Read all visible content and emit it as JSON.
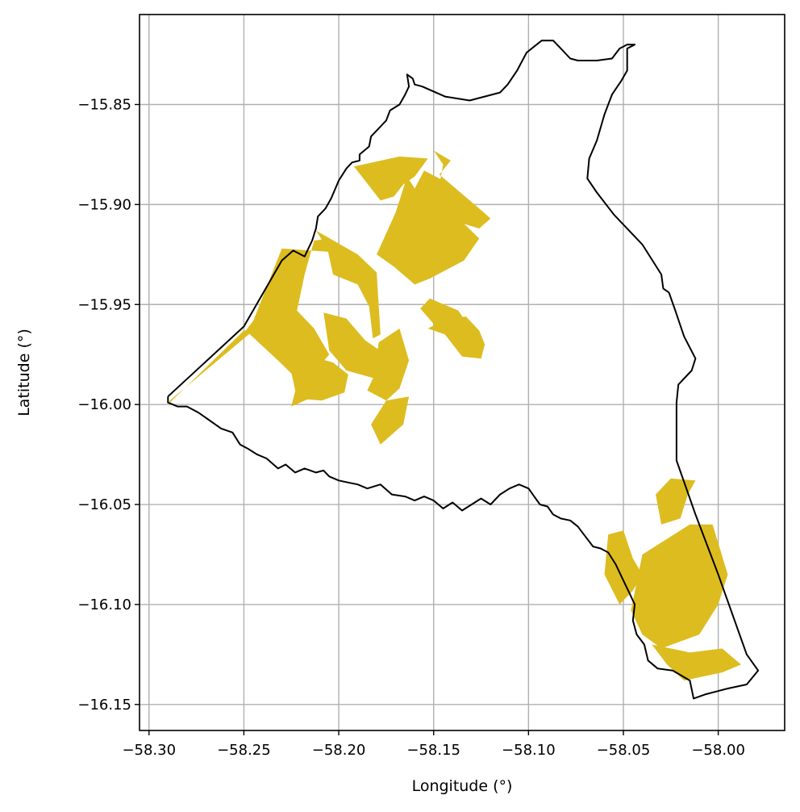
{
  "chart_data": {
    "type": "map",
    "xlabel": "Longitude (°)",
    "ylabel": "Latitude (°)",
    "xlim": [
      -58.305,
      -57.965
    ],
    "ylim": [
      -16.163,
      -15.805
    ],
    "xticks": [
      -58.3,
      -58.25,
      -58.2,
      -58.15,
      -58.1,
      -58.05,
      -58.0
    ],
    "xtick_labels": [
      "−58.30",
      "−58.25",
      "−58.20",
      "−58.15",
      "−58.10",
      "−58.05",
      "−58.00"
    ],
    "yticks": [
      -15.85,
      -15.9,
      -15.95,
      -16.0,
      -16.05,
      -16.1,
      -16.15
    ],
    "ytick_labels": [
      "−15.85",
      "−15.90",
      "−15.95",
      "−16.00",
      "−16.05",
      "−16.10",
      "−16.15"
    ],
    "grid": true,
    "fill_color": "#DDBC20",
    "outline_color": "#000000",
    "boundary": [
      [
        -58.29,
        -15.996
      ],
      [
        -58.25,
        -15.961
      ],
      [
        -58.23,
        -15.928
      ],
      [
        -58.224,
        -15.923
      ],
      [
        -58.218,
        -15.926
      ],
      [
        -58.214,
        -15.918
      ],
      [
        -58.212,
        -15.912
      ],
      [
        -58.211,
        -15.906
      ],
      [
        -58.207,
        -15.902
      ],
      [
        -58.204,
        -15.897
      ],
      [
        -58.2,
        -15.888
      ],
      [
        -58.196,
        -15.882
      ],
      [
        -58.193,
        -15.879
      ],
      [
        -58.189,
        -15.878
      ],
      [
        -58.189,
        -15.875
      ],
      [
        -58.184,
        -15.871
      ],
      [
        -58.183,
        -15.866
      ],
      [
        -58.175,
        -15.858
      ],
      [
        -58.173,
        -15.853
      ],
      [
        -58.168,
        -15.85
      ],
      [
        -58.165,
        -15.845
      ],
      [
        -58.163,
        -15.841
      ],
      [
        -58.164,
        -15.835
      ],
      [
        -58.161,
        -15.837
      ],
      [
        -58.16,
        -15.84
      ],
      [
        -58.156,
        -15.841
      ],
      [
        -58.144,
        -15.846
      ],
      [
        -58.131,
        -15.848
      ],
      [
        -58.115,
        -15.844
      ],
      [
        -58.111,
        -15.84
      ],
      [
        -58.106,
        -15.833
      ],
      [
        -58.101,
        -15.824
      ],
      [
        -58.093,
        -15.818
      ],
      [
        -58.087,
        -15.818
      ],
      [
        -58.083,
        -15.822
      ],
      [
        -58.078,
        -15.827
      ],
      [
        -58.074,
        -15.828
      ],
      [
        -58.064,
        -15.828
      ],
      [
        -58.056,
        -15.827
      ],
      [
        -58.052,
        -15.822
      ],
      [
        -58.048,
        -15.82
      ],
      [
        -58.044,
        -15.82
      ],
      [
        -58.048,
        -15.822
      ],
      [
        -58.048,
        -15.828
      ],
      [
        -58.048,
        -15.833
      ],
      [
        -58.051,
        -15.838
      ],
      [
        -58.056,
        -15.845
      ],
      [
        -58.06,
        -15.855
      ],
      [
        -58.064,
        -15.868
      ],
      [
        -58.068,
        -15.877
      ],
      [
        -58.069,
        -15.887
      ],
      [
        -58.064,
        -15.894
      ],
      [
        -58.055,
        -15.905
      ],
      [
        -58.04,
        -15.92
      ],
      [
        -58.03,
        -15.935
      ],
      [
        -58.029,
        -15.942
      ],
      [
        -58.026,
        -15.944
      ],
      [
        -58.023,
        -15.952
      ],
      [
        -58.018,
        -15.966
      ],
      [
        -58.012,
        -15.977
      ],
      [
        -58.014,
        -15.983
      ],
      [
        -58.021,
        -15.99
      ],
      [
        -58.022,
        -15.999
      ],
      [
        -58.022,
        -16.028
      ],
      [
        -58.012,
        -16.055
      ],
      [
        -58,
        -16.085
      ],
      [
        -57.985,
        -16.125
      ],
      [
        -57.979,
        -16.133
      ],
      [
        -57.985,
        -16.14
      ],
      [
        -57.995,
        -16.142
      ],
      [
        -58.007,
        -16.145
      ],
      [
        -58.013,
        -16.147
      ],
      [
        -58.015,
        -16.138
      ],
      [
        -58.024,
        -16.133
      ],
      [
        -58.032,
        -16.132
      ],
      [
        -58.037,
        -16.128
      ],
      [
        -58.039,
        -16.12
      ],
      [
        -58.043,
        -16.115
      ],
      [
        -58.045,
        -16.108
      ],
      [
        -58.044,
        -16.1
      ],
      [
        -58.047,
        -16.094
      ],
      [
        -58.05,
        -16.088
      ],
      [
        -58.054,
        -16.08
      ],
      [
        -58.058,
        -16.074
      ],
      [
        -58.062,
        -16.072
      ],
      [
        -58.066,
        -16.071
      ],
      [
        -58.07,
        -16.066
      ],
      [
        -58.074,
        -16.061
      ],
      [
        -58.078,
        -16.058
      ],
      [
        -58.083,
        -16.057
      ],
      [
        -58.087,
        -16.055
      ],
      [
        -58.09,
        -16.051
      ],
      [
        -58.094,
        -16.05
      ],
      [
        -58.097,
        -16.046
      ],
      [
        -58.1,
        -16.042
      ],
      [
        -58.105,
        -16.04
      ],
      [
        -58.11,
        -16.042
      ],
      [
        -58.115,
        -16.045
      ],
      [
        -58.12,
        -16.05
      ],
      [
        -58.125,
        -16.047
      ],
      [
        -58.13,
        -16.05
      ],
      [
        -58.135,
        -16.053
      ],
      [
        -58.14,
        -16.049
      ],
      [
        -58.145,
        -16.052
      ],
      [
        -58.15,
        -16.048
      ],
      [
        -58.155,
        -16.046
      ],
      [
        -58.16,
        -16.048
      ],
      [
        -58.165,
        -16.046
      ],
      [
        -58.172,
        -16.045
      ],
      [
        -58.178,
        -16.04
      ],
      [
        -58.185,
        -16.042
      ],
      [
        -58.19,
        -16.04
      ],
      [
        -58.195,
        -16.039
      ],
      [
        -58.2,
        -16.038
      ],
      [
        -58.205,
        -16.036
      ],
      [
        -58.208,
        -16.033
      ],
      [
        -58.212,
        -16.034
      ],
      [
        -58.218,
        -16.032
      ],
      [
        -58.223,
        -16.034
      ],
      [
        -58.228,
        -16.03
      ],
      [
        -58.232,
        -16.032
      ],
      [
        -58.238,
        -16.027
      ],
      [
        -58.243,
        -16.025
      ],
      [
        -58.248,
        -16.022
      ],
      [
        -58.252,
        -16.02
      ],
      [
        -58.256,
        -16.014
      ],
      [
        -58.262,
        -16.012
      ],
      [
        -58.265,
        -16.01
      ],
      [
        -58.268,
        -16.008
      ],
      [
        -58.274,
        -16.004
      ],
      [
        -58.28,
        -16.001
      ],
      [
        -58.285,
        -16.001
      ],
      [
        -58.29,
        -15.999
      ],
      [
        -58.29,
        -15.996
      ]
    ],
    "parcels": [
      [
        [
          -58.29,
          -16.0
        ],
        [
          -58.25,
          -15.963
        ],
        [
          -58.245,
          -15.963
        ],
        [
          -58.289,
          -15.998
        ]
      ],
      [
        [
          -58.192,
          -15.881
        ],
        [
          -58.168,
          -15.876
        ],
        [
          -58.153,
          -15.877
        ],
        [
          -58.16,
          -15.886
        ],
        [
          -58.166,
          -15.89
        ],
        [
          -58.171,
          -15.896
        ],
        [
          -58.178,
          -15.898
        ]
      ],
      [
        [
          -58.164,
          -15.886
        ],
        [
          -58.16,
          -15.892
        ],
        [
          -58.155,
          -15.883
        ],
        [
          -58.145,
          -15.888
        ],
        [
          -58.139,
          -15.905
        ],
        [
          -58.126,
          -15.917
        ],
        [
          -58.134,
          -15.928
        ],
        [
          -58.152,
          -15.937
        ],
        [
          -58.16,
          -15.94
        ],
        [
          -58.171,
          -15.931
        ],
        [
          -58.18,
          -15.925
        ],
        [
          -58.17,
          -15.904
        ]
      ],
      [
        [
          -58.15,
          -15.873
        ],
        [
          -58.141,
          -15.878
        ],
        [
          -58.147,
          -15.885
        ],
        [
          -58.126,
          -15.902
        ],
        [
          -58.12,
          -15.907
        ],
        [
          -58.126,
          -15.912
        ],
        [
          -58.15,
          -15.905
        ],
        [
          -58.145,
          -15.88
        ]
      ],
      [
        [
          -58.23,
          -15.922
        ],
        [
          -58.245,
          -15.958
        ],
        [
          -58.249,
          -15.963
        ],
        [
          -58.232,
          -15.978
        ],
        [
          -58.219,
          -15.99
        ],
        [
          -58.205,
          -15.975
        ],
        [
          -58.213,
          -15.962
        ],
        [
          -58.222,
          -15.953
        ],
        [
          -58.218,
          -15.935
        ],
        [
          -58.213,
          -15.918
        ],
        [
          -58.205,
          -15.917
        ],
        [
          -58.2,
          -15.924
        ]
      ],
      [
        [
          -58.212,
          -15.913
        ],
        [
          -58.19,
          -15.925
        ],
        [
          -58.18,
          -15.934
        ],
        [
          -58.178,
          -15.965
        ],
        [
          -58.182,
          -15.967
        ],
        [
          -58.184,
          -15.951
        ],
        [
          -58.19,
          -15.94
        ],
        [
          -58.203,
          -15.935
        ],
        [
          -58.206,
          -15.922
        ]
      ],
      [
        [
          -58.208,
          -15.954
        ],
        [
          -58.196,
          -15.957
        ],
        [
          -58.186,
          -15.968
        ],
        [
          -58.172,
          -15.977
        ],
        [
          -58.181,
          -15.987
        ],
        [
          -58.196,
          -15.983
        ],
        [
          -58.205,
          -15.973
        ]
      ],
      [
        [
          -58.179,
          -15.969
        ],
        [
          -58.168,
          -15.962
        ],
        [
          -58.163,
          -15.978
        ],
        [
          -58.168,
          -15.992
        ],
        [
          -58.175,
          -15.998
        ],
        [
          -58.185,
          -15.993
        ],
        [
          -58.181,
          -15.985
        ]
      ],
      [
        [
          -58.175,
          -15.998
        ],
        [
          -58.163,
          -15.996
        ],
        [
          -58.166,
          -16.01
        ],
        [
          -58.178,
          -16.02
        ],
        [
          -58.183,
          -16.01
        ]
      ],
      [
        [
          -58.214,
          -15.976
        ],
        [
          -58.203,
          -15.979
        ],
        [
          -58.195,
          -15.985
        ],
        [
          -58.197,
          -15.994
        ],
        [
          -58.209,
          -15.998
        ],
        [
          -58.222,
          -15.997
        ],
        [
          -58.225,
          -15.984
        ]
      ],
      [
        [
          -58.211,
          -15.977
        ],
        [
          -58.221,
          -15.986
        ],
        [
          -58.225,
          -16.001
        ],
        [
          -58.213,
          -15.996
        ]
      ],
      [
        [
          -58.152,
          -15.947
        ],
        [
          -58.137,
          -15.953
        ],
        [
          -58.132,
          -15.96
        ],
        [
          -58.147,
          -15.963
        ],
        [
          -58.157,
          -15.952
        ]
      ],
      [
        [
          -58.153,
          -15.962
        ],
        [
          -58.144,
          -15.965
        ],
        [
          -58.135,
          -15.976
        ],
        [
          -58.125,
          -15.977
        ],
        [
          -58.123,
          -15.97
        ],
        [
          -58.126,
          -15.963
        ],
        [
          -58.133,
          -15.956
        ],
        [
          -58.145,
          -15.958
        ]
      ],
      [
        [
          -58.058,
          -16.065
        ],
        [
          -58.05,
          -16.063
        ],
        [
          -58.045,
          -16.077
        ],
        [
          -58.04,
          -16.085
        ],
        [
          -58.045,
          -16.093
        ],
        [
          -58.052,
          -16.1
        ],
        [
          -58.06,
          -16.085
        ]
      ],
      [
        [
          -58.033,
          -16.045
        ],
        [
          -58.025,
          -16.037
        ],
        [
          -58.012,
          -16.038
        ],
        [
          -58.016,
          -16.045
        ],
        [
          -58.02,
          -16.057
        ],
        [
          -58.03,
          -16.06
        ]
      ],
      [
        [
          -58.04,
          -16.075
        ],
        [
          -58.015,
          -16.06
        ],
        [
          -58.003,
          -16.06
        ],
        [
          -57.995,
          -16.085
        ],
        [
          -58,
          -16.1
        ],
        [
          -58.01,
          -16.115
        ],
        [
          -58.03,
          -16.122
        ],
        [
          -58.04,
          -16.115
        ],
        [
          -58.046,
          -16.103
        ]
      ],
      [
        [
          -58.035,
          -16.12
        ],
        [
          -58.015,
          -16.124
        ],
        [
          -57.998,
          -16.122
        ],
        [
          -57.988,
          -16.13
        ],
        [
          -57.998,
          -16.134
        ],
        [
          -58.018,
          -16.138
        ],
        [
          -58.027,
          -16.13
        ]
      ]
    ]
  }
}
